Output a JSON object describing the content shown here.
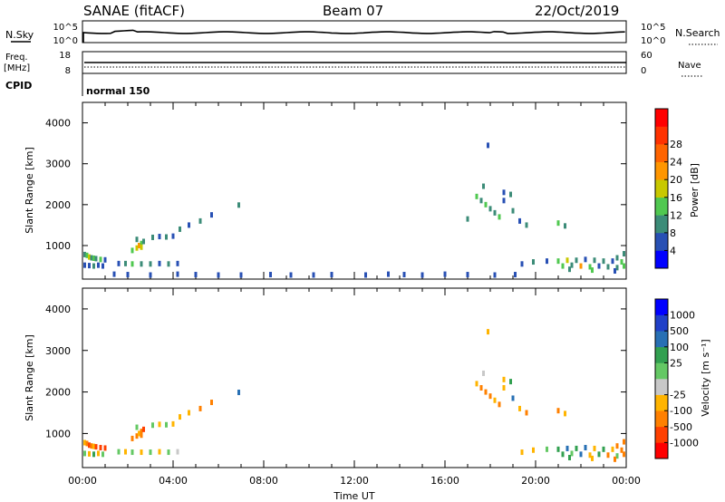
{
  "header": {
    "station": "SANAE (fitACF)",
    "beam": "Beam 07",
    "date": "22/Oct/2019"
  },
  "panels": {
    "nsky_label": "N.Sky",
    "nsearch_label": "N.Search",
    "freq_label": "Freq.",
    "freq_unit": "[MHz]",
    "nave_label": "Nave",
    "cpid_label": "CPID",
    "cpid_value": "normal 150",
    "noise_left_ticks": [
      "10^5",
      "10^0"
    ],
    "noise_right_ticks": [
      "10^5",
      "10^0"
    ],
    "freq_left_ticks": [
      "18",
      "8"
    ],
    "freq_right_ticks": [
      "60",
      "0"
    ]
  },
  "colors": {
    "power_scale": [
      "#0000ff",
      "#2850b4",
      "#3c8c78",
      "#50c850",
      "#c8c800",
      "#ff9600",
      "#ff6400",
      "#ff3200",
      "#ff0000"
    ],
    "velocity_scale": [
      "#ff0000",
      "#ff4000",
      "#ff8000",
      "#ffb400",
      "#c8c8c8",
      "#64c864",
      "#32a050",
      "#2870b4",
      "#2040c8",
      "#0000ff"
    ]
  },
  "chart_data": [
    {
      "type": "scatter",
      "name": "power",
      "xlabel": "",
      "ylabel": "Slant Range [km]",
      "x_unit": "hours UT",
      "xlim": [
        0,
        24
      ],
      "ylim": [
        180,
        4500
      ],
      "yticks": [
        "1000",
        "2000",
        "3000",
        "4000"
      ],
      "colorbar_label": "Power [dB]",
      "colorbar_ticks": [
        "4",
        "8",
        "12",
        "16",
        "20",
        "24",
        "28"
      ],
      "points": [
        [
          0.1,
          780,
          8
        ],
        [
          0.2,
          760,
          12
        ],
        [
          0.3,
          720,
          16
        ],
        [
          0.4,
          700,
          10
        ],
        [
          0.5,
          690,
          14
        ],
        [
          0.6,
          680,
          8
        ],
        [
          0.8,
          660,
          12
        ],
        [
          1.0,
          650,
          6
        ],
        [
          0.1,
          520,
          4
        ],
        [
          0.3,
          510,
          6
        ],
        [
          0.5,
          500,
          8
        ],
        [
          0.7,
          520,
          6
        ],
        [
          0.9,
          500,
          4
        ],
        [
          1.6,
          560,
          6
        ],
        [
          1.9,
          560,
          8
        ],
        [
          2.2,
          550,
          12
        ],
        [
          2.6,
          550,
          10
        ],
        [
          3.0,
          550,
          8
        ],
        [
          3.4,
          560,
          6
        ],
        [
          3.8,
          550,
          8
        ],
        [
          4.2,
          560,
          4
        ],
        [
          2.2,
          880,
          12
        ],
        [
          2.4,
          940,
          16
        ],
        [
          2.5,
          1000,
          20
        ],
        [
          2.6,
          1050,
          14
        ],
        [
          2.7,
          1100,
          10
        ],
        [
          2.4,
          1150,
          8
        ],
        [
          2.6,
          960,
          18
        ],
        [
          3.1,
          1200,
          8
        ],
        [
          3.4,
          1220,
          6
        ],
        [
          3.7,
          1210,
          8
        ],
        [
          4.0,
          1230,
          6
        ],
        [
          4.3,
          1400,
          8
        ],
        [
          4.7,
          1500,
          6
        ],
        [
          5.2,
          1600,
          8
        ],
        [
          5.7,
          1750,
          6
        ],
        [
          6.9,
          1990,
          8
        ],
        [
          1.4,
          300,
          4
        ],
        [
          2.0,
          290,
          4
        ],
        [
          3.0,
          280,
          4
        ],
        [
          4.2,
          300,
          4
        ],
        [
          5.0,
          290,
          4
        ],
        [
          6.0,
          280,
          4
        ],
        [
          7.0,
          280,
          4
        ],
        [
          8.3,
          290,
          4
        ],
        [
          9.2,
          280,
          4
        ],
        [
          10.2,
          280,
          4
        ],
        [
          11.0,
          290,
          4
        ],
        [
          12.5,
          280,
          4
        ],
        [
          13.5,
          300,
          4
        ],
        [
          14.2,
          290,
          4
        ],
        [
          15.0,
          280,
          4
        ],
        [
          16.0,
          300,
          4
        ],
        [
          17.0,
          290,
          4
        ],
        [
          18.2,
          280,
          4
        ],
        [
          19.1,
          290,
          4
        ],
        [
          17.4,
          2200,
          14
        ],
        [
          17.6,
          2100,
          10
        ],
        [
          17.8,
          2000,
          12
        ],
        [
          18.0,
          1900,
          8
        ],
        [
          18.2,
          1800,
          10
        ],
        [
          18.4,
          1700,
          12
        ],
        [
          17.7,
          2450,
          8
        ],
        [
          17.9,
          3450,
          4
        ],
        [
          18.6,
          2100,
          6
        ],
        [
          19.0,
          1850,
          8
        ],
        [
          19.3,
          1600,
          6
        ],
        [
          19.6,
          1500,
          8
        ],
        [
          21.0,
          1550,
          12
        ],
        [
          21.3,
          1480,
          10
        ],
        [
          17.0,
          1650,
          8
        ],
        [
          18.6,
          2300,
          6
        ],
        [
          18.9,
          2250,
          8
        ],
        [
          19.4,
          550,
          6
        ],
        [
          19.9,
          600,
          8
        ],
        [
          20.5,
          620,
          4
        ],
        [
          21.0,
          620,
          12
        ],
        [
          21.4,
          640,
          16
        ],
        [
          21.8,
          640,
          8
        ],
        [
          22.2,
          660,
          6
        ],
        [
          22.6,
          640,
          10
        ],
        [
          23.0,
          620,
          8
        ],
        [
          23.4,
          620,
          4
        ],
        [
          23.8,
          600,
          12
        ],
        [
          21.2,
          500,
          14
        ],
        [
          21.6,
          520,
          8
        ],
        [
          22.0,
          500,
          20
        ],
        [
          22.4,
          480,
          12
        ],
        [
          22.8,
          500,
          6
        ],
        [
          23.2,
          480,
          10
        ],
        [
          23.6,
          460,
          8
        ],
        [
          23.9,
          500,
          14
        ],
        [
          21.5,
          420,
          8
        ],
        [
          22.5,
          400,
          12
        ],
        [
          23.5,
          380,
          6
        ],
        [
          23.9,
          800,
          8
        ],
        [
          23.6,
          700,
          10
        ]
      ]
    },
    {
      "type": "scatter",
      "name": "velocity",
      "xlabel": "Time UT",
      "ylabel": "Slant Range [km]",
      "x_unit": "hours UT",
      "xlim": [
        0,
        24
      ],
      "ylim": [
        180,
        4500
      ],
      "yticks": [
        "1000",
        "2000",
        "3000",
        "4000"
      ],
      "xticks": [
        "00:00",
        "04:00",
        "08:00",
        "12:00",
        "16:00",
        "20:00",
        "00:00"
      ],
      "colorbar_label": "Velocity [m s⁻¹]",
      "colorbar_ticks": [
        "1000",
        "500",
        "100",
        "25",
        "-25",
        "-100",
        "-500",
        "-1000"
      ],
      "points": [
        [
          0.1,
          780,
          -100
        ],
        [
          0.2,
          760,
          -300
        ],
        [
          0.3,
          720,
          -700
        ],
        [
          0.4,
          700,
          -200
        ],
        [
          0.5,
          690,
          -40
        ],
        [
          0.6,
          680,
          -800
        ],
        [
          0.8,
          660,
          -600
        ],
        [
          1.0,
          650,
          -900
        ],
        [
          0.1,
          520,
          60
        ],
        [
          0.3,
          510,
          -40
        ],
        [
          0.5,
          500,
          150
        ],
        [
          0.7,
          520,
          -60
        ],
        [
          0.9,
          500,
          40
        ],
        [
          1.6,
          560,
          50
        ],
        [
          1.9,
          560,
          -40
        ],
        [
          2.2,
          550,
          60
        ],
        [
          2.6,
          550,
          -60
        ],
        [
          3.0,
          550,
          40
        ],
        [
          3.4,
          560,
          -30
        ],
        [
          3.8,
          550,
          60
        ],
        [
          4.2,
          560,
          20
        ],
        [
          2.2,
          880,
          -200
        ],
        [
          2.4,
          940,
          -400
        ],
        [
          2.5,
          1000,
          -60
        ],
        [
          2.6,
          1050,
          -150
        ],
        [
          2.7,
          1100,
          -600
        ],
        [
          2.4,
          1150,
          60
        ],
        [
          2.6,
          960,
          -300
        ],
        [
          3.1,
          1200,
          40
        ],
        [
          3.4,
          1220,
          -40
        ],
        [
          3.7,
          1210,
          60
        ],
        [
          4.0,
          1230,
          -50
        ],
        [
          4.3,
          1400,
          -100
        ],
        [
          4.7,
          1500,
          -60
        ],
        [
          5.2,
          1600,
          -150
        ],
        [
          5.7,
          1750,
          -200
        ],
        [
          6.9,
          1990,
          800
        ],
        [
          17.4,
          2200,
          -100
        ],
        [
          17.6,
          2100,
          -300
        ],
        [
          17.8,
          2000,
          -200
        ],
        [
          18.0,
          1900,
          -400
        ],
        [
          18.2,
          1800,
          -60
        ],
        [
          18.4,
          1700,
          -150
        ],
        [
          17.7,
          2450,
          20
        ],
        [
          17.9,
          3450,
          -40
        ],
        [
          18.6,
          2100,
          -100
        ],
        [
          19.0,
          1850,
          600
        ],
        [
          19.3,
          1600,
          -60
        ],
        [
          19.6,
          1500,
          -200
        ],
        [
          21.0,
          1550,
          -300
        ],
        [
          21.3,
          1480,
          -100
        ],
        [
          18.6,
          2300,
          -60
        ],
        [
          18.9,
          2250,
          200
        ],
        [
          19.4,
          550,
          -100
        ],
        [
          19.9,
          600,
          -60
        ],
        [
          20.5,
          620,
          30
        ],
        [
          21.0,
          620,
          200
        ],
        [
          21.4,
          640,
          600
        ],
        [
          21.8,
          640,
          150
        ],
        [
          22.2,
          660,
          800
        ],
        [
          22.6,
          640,
          -40
        ],
        [
          23.0,
          620,
          300
        ],
        [
          23.4,
          620,
          -100
        ],
        [
          23.8,
          600,
          -300
        ],
        [
          21.2,
          500,
          200
        ],
        [
          21.6,
          520,
          40
        ],
        [
          22.0,
          500,
          600
        ],
        [
          22.4,
          480,
          -60
        ],
        [
          22.8,
          500,
          150
        ],
        [
          23.2,
          480,
          -200
        ],
        [
          23.6,
          460,
          60
        ],
        [
          23.9,
          500,
          -500
        ],
        [
          21.5,
          420,
          300
        ],
        [
          22.5,
          400,
          -100
        ],
        [
          23.5,
          380,
          -300
        ],
        [
          23.9,
          800,
          -200
        ],
        [
          23.6,
          700,
          -400
        ]
      ]
    }
  ]
}
